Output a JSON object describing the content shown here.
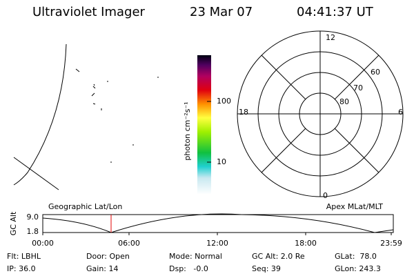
{
  "header": {
    "title": "Ultraviolet Imager",
    "date": "23 Mar 07",
    "time": "04:41:37 UT"
  },
  "colorbar": {
    "label": "photon cm⁻²s⁻¹",
    "ticks": [
      "100",
      "10"
    ]
  },
  "polar": {
    "mlt_labels": [
      "12",
      "18",
      "6",
      "0"
    ],
    "lat_labels": [
      "60",
      "70",
      "80"
    ]
  },
  "timeline": {
    "left_title": "Geographic Lat/Lon",
    "right_title": "Apex MLat/MLT",
    "y_label": "GC Alt",
    "y_ticks": [
      "9.0",
      "1.8"
    ],
    "x_ticks": [
      "00:00",
      "06:00",
      "12:00",
      "18:00",
      "23:59"
    ]
  },
  "status": [
    [
      "Flt: LBHL",
      "Door: Open",
      "Mode: Normal",
      "GC Alt: 2.0 Re",
      "GLat:  78.0"
    ],
    [
      "IP: 36.0",
      "Gain: 14",
      "Dsp:   -0.0",
      "Seq: 39",
      "GLon: 243.3"
    ]
  ]
}
